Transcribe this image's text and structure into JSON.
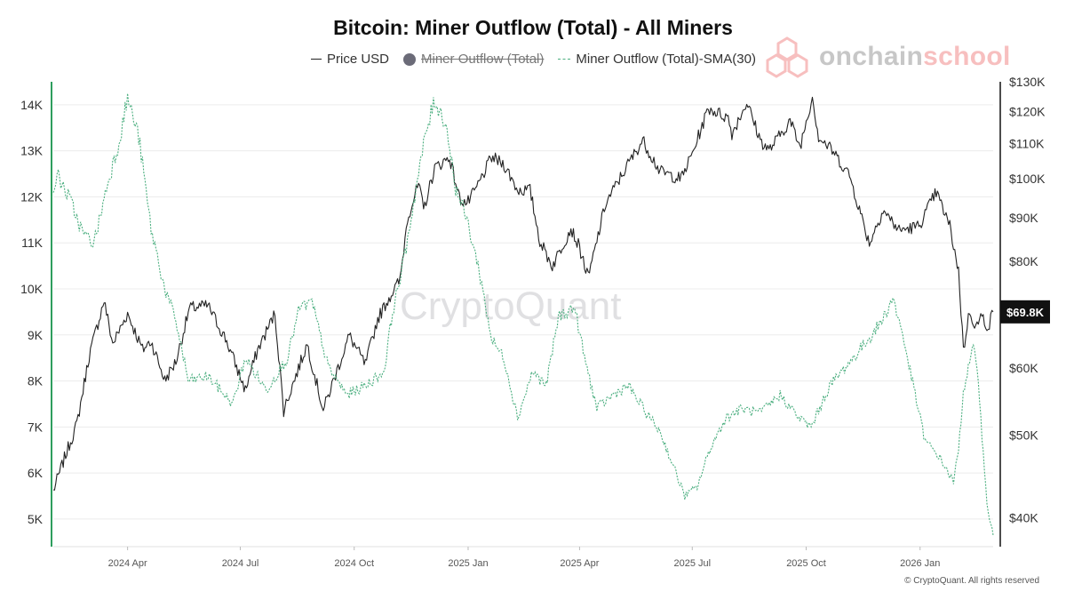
{
  "title": "Bitcoin: Miner Outflow (Total) - All Miners",
  "legend": [
    {
      "label": "Price USD",
      "style": "line",
      "color": "#222222",
      "hidden": false
    },
    {
      "label": "Miner Outflow (Total)",
      "style": "dot",
      "color": "#6b6b78",
      "hidden": true
    },
    {
      "label": "Miner Outflow (Total)-SMA(30)",
      "style": "dashed",
      "color": "#4caf80",
      "hidden": false
    }
  ],
  "brand": {
    "part1": "onchain",
    "part2": "school"
  },
  "watermark": "CryptoQuant",
  "copyright": "© CryptoQuant. All rights reserved",
  "current_price_label": "$69.8K",
  "colors": {
    "price": "#222222",
    "sma": "#4caf80",
    "accent": "#2e9e5e",
    "badge": "#111111"
  },
  "chart_data": {
    "type": "line",
    "title": "Bitcoin: Miner Outflow (Total) - All Miners",
    "x_ticks": [
      "2024 Apr",
      "2024 Jul",
      "2024 Oct",
      "2025 Jan",
      "2025 Apr",
      "2025 Jul",
      "2025 Oct",
      "2026 Jan"
    ],
    "x_range": [
      "2024-02-01",
      "2026-03-01"
    ],
    "left_axis": {
      "ticks": [
        "5K",
        "6K",
        "7K",
        "8K",
        "9K",
        "10K",
        "11K",
        "12K",
        "13K",
        "14K"
      ],
      "range": [
        4400,
        14500
      ]
    },
    "right_axis": {
      "scale": "log",
      "ticks": [
        "$40K",
        "$50K",
        "$60K",
        "$70K",
        "$80K",
        "$90K",
        "$100K",
        "$110K",
        "$120K",
        "$130K"
      ],
      "range": [
        37000,
        130000
      ]
    },
    "grid": "horizontal",
    "series": [
      {
        "name": "Price USD",
        "axis": "right",
        "style": "solid",
        "points": [
          [
            "2024-02-01",
            43000
          ],
          [
            "2024-02-10",
            47000
          ],
          [
            "2024-02-20",
            51500
          ],
          [
            "2024-03-01",
            62000
          ],
          [
            "2024-03-13",
            72000
          ],
          [
            "2024-03-20",
            64000
          ],
          [
            "2024-04-01",
            69500
          ],
          [
            "2024-04-13",
            63000
          ],
          [
            "2024-04-20",
            64500
          ],
          [
            "2024-05-01",
            58000
          ],
          [
            "2024-05-10",
            61000
          ],
          [
            "2024-05-21",
            70500
          ],
          [
            "2024-06-05",
            71000
          ],
          [
            "2024-06-20",
            64500
          ],
          [
            "2024-07-05",
            56500
          ],
          [
            "2024-07-15",
            63000
          ],
          [
            "2024-07-29",
            69500
          ],
          [
            "2024-08-05",
            53500
          ],
          [
            "2024-08-24",
            64000
          ],
          [
            "2024-09-06",
            53500
          ],
          [
            "2024-09-27",
            65500
          ],
          [
            "2024-10-10",
            60500
          ],
          [
            "2024-10-20",
            68500
          ],
          [
            "2024-10-29",
            72500
          ],
          [
            "2024-11-07",
            76000
          ],
          [
            "2024-11-13",
            90000
          ],
          [
            "2024-11-22",
            98500
          ],
          [
            "2024-11-26",
            92000
          ],
          [
            "2024-12-05",
            103000
          ],
          [
            "2024-12-17",
            106000
          ],
          [
            "2024-12-25",
            95000
          ],
          [
            "2024-12-31",
            93500
          ],
          [
            "2025-01-07",
            97000
          ],
          [
            "2025-01-20",
            106000
          ],
          [
            "2025-01-30",
            104000
          ],
          [
            "2025-02-10",
            97000
          ],
          [
            "2025-02-20",
            97000
          ],
          [
            "2025-02-28",
            84500
          ],
          [
            "2025-03-10",
            79000
          ],
          [
            "2025-03-25",
            87500
          ],
          [
            "2025-04-01",
            83000
          ],
          [
            "2025-04-08",
            76500
          ],
          [
            "2025-04-22",
            93500
          ],
          [
            "2025-05-10",
            104000
          ],
          [
            "2025-05-22",
            111000
          ],
          [
            "2025-06-05",
            102000
          ],
          [
            "2025-06-22",
            100000
          ],
          [
            "2025-07-01",
            107000
          ],
          [
            "2025-07-14",
            121000
          ],
          [
            "2025-07-30",
            118000
          ],
          [
            "2025-08-02",
            113000
          ],
          [
            "2025-08-14",
            123000
          ],
          [
            "2025-08-25",
            111000
          ],
          [
            "2025-09-01",
            108000
          ],
          [
            "2025-09-18",
            117000
          ],
          [
            "2025-09-26",
            109000
          ],
          [
            "2025-10-06",
            125000
          ],
          [
            "2025-10-11",
            112000
          ],
          [
            "2025-10-22",
            108000
          ],
          [
            "2025-11-05",
            101000
          ],
          [
            "2025-11-21",
            84000
          ],
          [
            "2025-12-02",
            92000
          ],
          [
            "2025-12-15",
            87000
          ],
          [
            "2025-12-31",
            88000
          ],
          [
            "2026-01-14",
            96500
          ],
          [
            "2026-01-25",
            88000
          ],
          [
            "2026-02-01",
            78000
          ],
          [
            "2026-02-05",
            63000
          ],
          [
            "2026-02-10",
            70000
          ],
          [
            "2026-02-15",
            67000
          ],
          [
            "2026-02-20",
            69000
          ],
          [
            "2026-02-25",
            67000
          ],
          [
            "2026-03-01",
            69800
          ]
        ]
      },
      {
        "name": "Miner Outflow (Total)-SMA(30)",
        "axis": "left",
        "style": "dashed",
        "points": [
          [
            "2024-02-01",
            12200
          ],
          [
            "2024-02-05",
            12450
          ],
          [
            "2024-02-15",
            11900
          ],
          [
            "2024-02-25",
            11200
          ],
          [
            "2024-03-05",
            11000
          ],
          [
            "2024-03-15",
            12200
          ],
          [
            "2024-03-25",
            13200
          ],
          [
            "2024-04-01",
            14150
          ],
          [
            "2024-04-10",
            13300
          ],
          [
            "2024-04-20",
            11300
          ],
          [
            "2024-05-01",
            10000
          ],
          [
            "2024-05-10",
            9300
          ],
          [
            "2024-05-20",
            8000
          ],
          [
            "2024-06-05",
            8100
          ],
          [
            "2024-06-25",
            7500
          ],
          [
            "2024-07-05",
            8500
          ],
          [
            "2024-07-22",
            7800
          ],
          [
            "2024-08-08",
            8500
          ],
          [
            "2024-08-18",
            9600
          ],
          [
            "2024-08-28",
            9700
          ],
          [
            "2024-09-10",
            8300
          ],
          [
            "2024-09-25",
            7700
          ],
          [
            "2024-10-10",
            7900
          ],
          [
            "2024-10-25",
            8200
          ],
          [
            "2024-11-01",
            9500
          ],
          [
            "2024-11-10",
            10600
          ],
          [
            "2024-11-20",
            12200
          ],
          [
            "2024-11-28",
            13400
          ],
          [
            "2024-12-05",
            14100
          ],
          [
            "2024-12-14",
            13600
          ],
          [
            "2024-12-22",
            12200
          ],
          [
            "2024-12-31",
            11500
          ],
          [
            "2025-01-10",
            10400
          ],
          [
            "2025-01-20",
            8900
          ],
          [
            "2025-01-30",
            8500
          ],
          [
            "2025-02-10",
            7200
          ],
          [
            "2025-02-22",
            8200
          ],
          [
            "2025-03-05",
            7900
          ],
          [
            "2025-03-15",
            9400
          ],
          [
            "2025-03-28",
            9600
          ],
          [
            "2025-04-05",
            8500
          ],
          [
            "2025-04-15",
            7400
          ],
          [
            "2025-04-28",
            7700
          ],
          [
            "2025-05-10",
            7900
          ],
          [
            "2025-05-25",
            7300
          ],
          [
            "2025-06-05",
            6900
          ],
          [
            "2025-06-15",
            6200
          ],
          [
            "2025-06-25",
            5500
          ],
          [
            "2025-07-05",
            5700
          ],
          [
            "2025-07-15",
            6500
          ],
          [
            "2025-07-28",
            7200
          ],
          [
            "2025-08-10",
            7400
          ],
          [
            "2025-08-25",
            7300
          ],
          [
            "2025-09-10",
            7700
          ],
          [
            "2025-09-25",
            7200
          ],
          [
            "2025-10-05",
            7000
          ],
          [
            "2025-10-20",
            7900
          ],
          [
            "2025-11-05",
            8400
          ],
          [
            "2025-11-20",
            8900
          ],
          [
            "2025-12-01",
            9300
          ],
          [
            "2025-12-10",
            9800
          ],
          [
            "2025-12-18",
            9000
          ],
          [
            "2025-12-28",
            7700
          ],
          [
            "2026-01-05",
            6700
          ],
          [
            "2026-01-15",
            6400
          ],
          [
            "2026-01-22",
            6100
          ],
          [
            "2026-01-28",
            5800
          ],
          [
            "2026-02-01",
            6500
          ],
          [
            "2026-02-05",
            7800
          ],
          [
            "2026-02-10",
            8400
          ],
          [
            "2026-02-13",
            8700
          ],
          [
            "2026-02-17",
            8100
          ],
          [
            "2026-02-20",
            6800
          ],
          [
            "2026-02-24",
            5300
          ],
          [
            "2026-02-28",
            4800
          ],
          [
            "2026-03-01",
            4650
          ]
        ]
      }
    ]
  }
}
